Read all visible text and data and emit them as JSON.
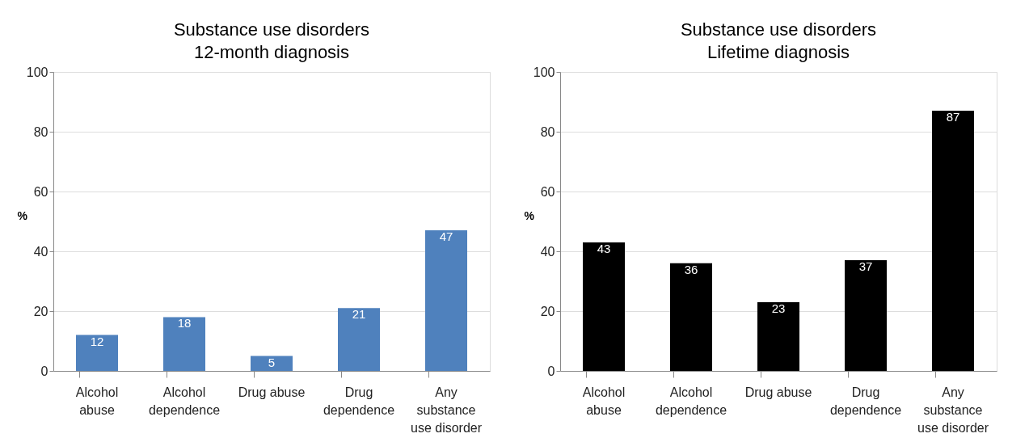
{
  "chart_data": [
    {
      "type": "bar",
      "title": "Substance use disorders",
      "subtitle": "12-month diagnosis",
      "ylabel": "%",
      "categories": [
        "Alcohol abuse",
        "Alcohol dependence",
        "Drug abuse",
        "Drug dependence",
        "Any substance use disorder"
      ],
      "series": [
        {
          "color": "#4f81bd",
          "values": [
            12,
            18,
            5,
            21,
            47
          ]
        }
      ],
      "ylim": [
        0,
        100
      ],
      "yticks": [
        0,
        20,
        40,
        60,
        80,
        100
      ],
      "grid": "y",
      "data_labels": true
    },
    {
      "type": "bar",
      "title": "Substance use disorders",
      "subtitle": "Lifetime diagnosis",
      "ylabel": "%",
      "categories": [
        "Alcohol abuse",
        "Alcohol dependence",
        "Drug abuse",
        "Drug dependence",
        "Any substance use disorder"
      ],
      "series": [
        {
          "color": "#000000",
          "values": [
            43,
            36,
            23,
            37,
            87
          ]
        }
      ],
      "ylim": [
        0,
        100
      ],
      "yticks": [
        0,
        20,
        40,
        60,
        80,
        100
      ],
      "grid": "y",
      "data_labels": true
    }
  ]
}
